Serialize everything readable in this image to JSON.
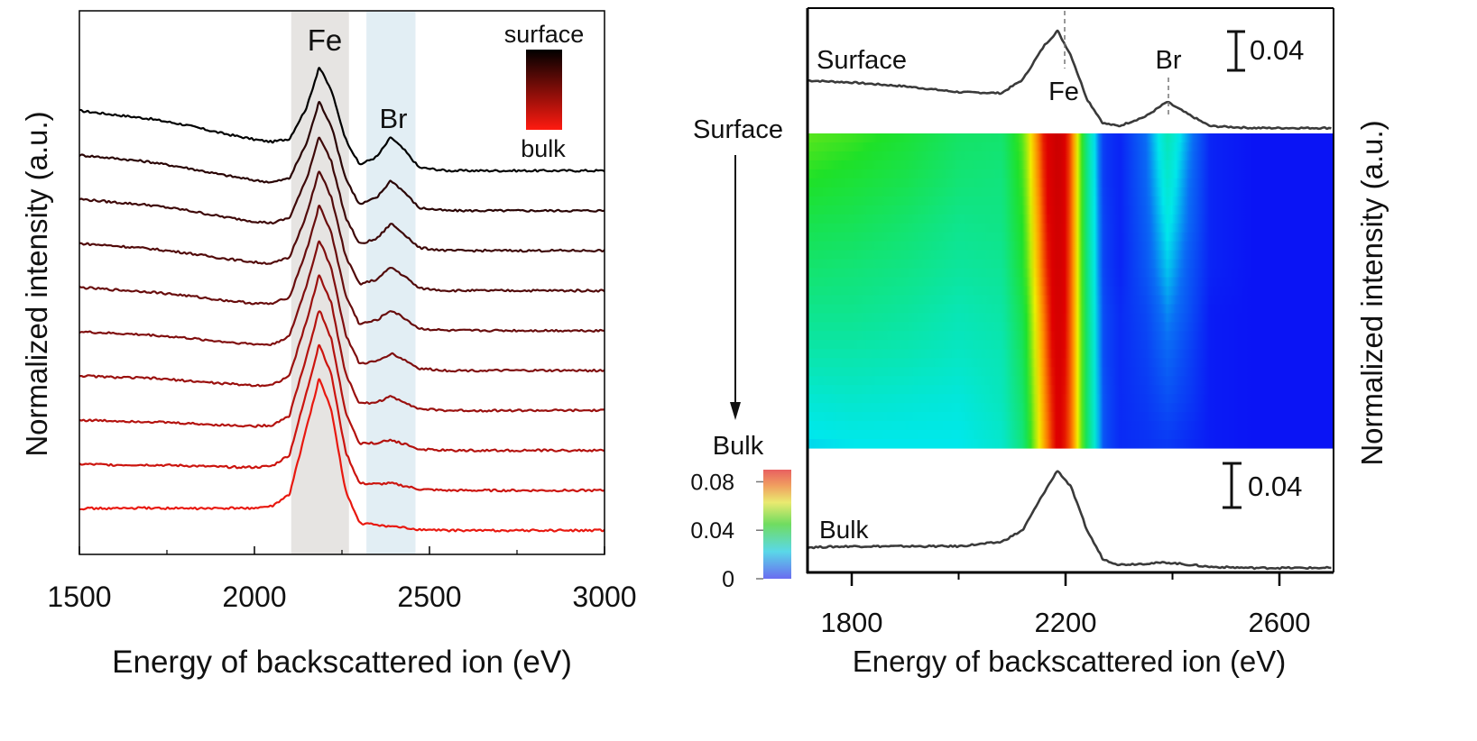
{
  "chart_data": [
    {
      "type": "line",
      "xlabel": "Energy of backscattered ion (eV)",
      "ylabel": "Normalized intensity (a.u.)",
      "xlim": [
        1500,
        3000
      ],
      "ylim": [
        -0.6,
        13.0
      ],
      "xticks": [
        1500,
        2000,
        2500,
        3000
      ],
      "xtick_labels": [
        "1500",
        "2000",
        "2500",
        "3000"
      ],
      "minor_xticks": [
        1750,
        2250,
        2750
      ],
      "bands": [
        {
          "label": "Fe",
          "range": [
            2105,
            2270
          ],
          "color": "#e6e4e2"
        },
        {
          "label": "Br",
          "range": [
            2320,
            2460
          ],
          "color": "#e2eef4"
        }
      ],
      "legend": {
        "top": "surface",
        "bottom": "bulk",
        "colors": [
          "#000000",
          "#ff1a10"
        ]
      },
      "x": [
        1500,
        1600,
        1700,
        1800,
        1900,
        2000,
        2050,
        2100,
        2150,
        2185,
        2220,
        2260,
        2300,
        2350,
        2390,
        2430,
        2470,
        2550,
        2700,
        3000
      ],
      "series": [
        {
          "offset": 9,
          "color": "#000000",
          "values": [
            1.5,
            1.4,
            1.3,
            1.15,
            0.95,
            0.78,
            0.72,
            0.8,
            1.6,
            2.6,
            2.0,
            0.8,
            0.15,
            0.35,
            0.84,
            0.5,
            0.08,
            0,
            0,
            0
          ]
        },
        {
          "offset": 8,
          "color": "#2a0505",
          "values": [
            1.39,
            1.31,
            1.22,
            1.08,
            0.91,
            0.76,
            0.71,
            0.81,
            1.71,
            2.73,
            2.11,
            0.82,
            0.15,
            0.33,
            0.76,
            0.45,
            0.07,
            0,
            0,
            0
          ]
        },
        {
          "offset": 7,
          "color": "#3e0808",
          "values": [
            1.29,
            1.21,
            1.14,
            1.02,
            0.86,
            0.73,
            0.69,
            0.82,
            1.82,
            2.87,
            2.22,
            0.84,
            0.16,
            0.3,
            0.68,
            0.4,
            0.07,
            0,
            0,
            0
          ]
        },
        {
          "offset": 6,
          "color": "#520a0a",
          "values": [
            1.18,
            1.12,
            1.05,
            0.95,
            0.82,
            0.71,
            0.68,
            0.83,
            1.93,
            3.0,
            2.33,
            0.87,
            0.16,
            0.28,
            0.59,
            0.35,
            0.06,
            0,
            0,
            0
          ]
        },
        {
          "offset": 5,
          "color": "#680c0c",
          "values": [
            1.08,
            1.02,
            0.97,
            0.88,
            0.77,
            0.68,
            0.67,
            0.84,
            2.04,
            3.13,
            2.44,
            0.89,
            0.16,
            0.26,
            0.51,
            0.3,
            0.05,
            0,
            0,
            0
          ]
        },
        {
          "offset": 4,
          "color": "#800e0e",
          "values": [
            0.97,
            0.93,
            0.89,
            0.82,
            0.73,
            0.66,
            0.65,
            0.86,
            2.16,
            3.27,
            2.56,
            0.91,
            0.17,
            0.23,
            0.43,
            0.26,
            0.05,
            0,
            0,
            0
          ]
        },
        {
          "offset": 3,
          "color": "#9a100e",
          "values": [
            0.87,
            0.83,
            0.81,
            0.75,
            0.68,
            0.63,
            0.64,
            0.87,
            2.27,
            3.4,
            2.67,
            0.93,
            0.17,
            0.21,
            0.35,
            0.21,
            0.04,
            0,
            0,
            0
          ]
        },
        {
          "offset": 2,
          "color": "#b4120e",
          "values": [
            0.76,
            0.74,
            0.72,
            0.68,
            0.64,
            0.61,
            0.63,
            0.88,
            2.38,
            3.53,
            2.78,
            0.96,
            0.17,
            0.19,
            0.26,
            0.16,
            0.03,
            0,
            0,
            0
          ]
        },
        {
          "offset": 1,
          "color": "#cc140e",
          "values": [
            0.66,
            0.64,
            0.64,
            0.62,
            0.59,
            0.58,
            0.61,
            0.89,
            2.49,
            3.67,
            2.89,
            0.98,
            0.18,
            0.16,
            0.18,
            0.11,
            0.03,
            0,
            0,
            0
          ]
        },
        {
          "offset": 0,
          "color": "#e8180f",
          "values": [
            0.55,
            0.55,
            0.56,
            0.55,
            0.55,
            0.56,
            0.6,
            0.9,
            2.6,
            3.8,
            3.0,
            1.0,
            0.18,
            0.14,
            0.1,
            0.06,
            0.02,
            0,
            0,
            0
          ]
        }
      ],
      "annotations": {
        "fe": "Fe",
        "br": "Br"
      }
    },
    {
      "type": "heatmap",
      "xlabel": "Energy of backscattered ion (eV)",
      "ylabel": "Normalized intensity (a.u.)",
      "xlim": [
        1717,
        2700
      ],
      "xticks": [
        1800,
        2200,
        2600
      ],
      "xtick_labels": [
        "1800",
        "2200",
        "2600"
      ],
      "minor_xticks": [
        2000,
        2400
      ],
      "depth_top": "Surface",
      "depth_bottom": "Bulk",
      "colorbar": {
        "title": "Bulk",
        "range": [
          0,
          0.09
        ],
        "ticks": [
          0,
          0.04,
          0.08
        ],
        "tick_labels": [
          "0",
          "0.04",
          "0.08"
        ]
      },
      "x": [
        1717,
        1800,
        1900,
        2000,
        2080,
        2120,
        2160,
        2185,
        2210,
        2240,
        2270,
        2300,
        2350,
        2390,
        2430,
        2470,
        2550,
        2700
      ],
      "z": [
        [
          0.049,
          0.047,
          0.043,
          0.037,
          0.036,
          0.05,
          0.085,
          0.1,
          0.075,
          0.03,
          0.005,
          0.002,
          0.012,
          0.027,
          0.014,
          0.002,
          0,
          0
        ],
        [
          0.045,
          0.043,
          0.04,
          0.035,
          0.034,
          0.048,
          0.083,
          0.099,
          0.075,
          0.031,
          0.005,
          0.002,
          0.011,
          0.024,
          0.012,
          0.002,
          0,
          0
        ],
        [
          0.04,
          0.039,
          0.036,
          0.032,
          0.033,
          0.046,
          0.081,
          0.097,
          0.075,
          0.031,
          0.006,
          0.002,
          0.01,
          0.021,
          0.011,
          0.002,
          0,
          0
        ],
        [
          0.036,
          0.035,
          0.033,
          0.03,
          0.031,
          0.044,
          0.079,
          0.096,
          0.075,
          0.032,
          0.006,
          0.002,
          0.009,
          0.018,
          0.009,
          0.002,
          0,
          0
        ],
        [
          0.032,
          0.032,
          0.03,
          0.027,
          0.029,
          0.041,
          0.076,
          0.094,
          0.075,
          0.033,
          0.007,
          0.003,
          0.007,
          0.014,
          0.008,
          0.001,
          0,
          0
        ],
        [
          0.028,
          0.028,
          0.027,
          0.025,
          0.027,
          0.039,
          0.074,
          0.093,
          0.075,
          0.034,
          0.007,
          0.003,
          0.006,
          0.011,
          0.006,
          0.001,
          0,
          0
        ],
        [
          0.023,
          0.024,
          0.023,
          0.022,
          0.026,
          0.037,
          0.072,
          0.091,
          0.075,
          0.034,
          0.008,
          0.003,
          0.005,
          0.008,
          0.005,
          0.001,
          0,
          0
        ],
        [
          0.019,
          0.02,
          0.02,
          0.02,
          0.024,
          0.035,
          0.07,
          0.09,
          0.075,
          0.035,
          0.008,
          0.003,
          0.004,
          0.005,
          0.003,
          0.001,
          0,
          0
        ]
      ],
      "spectra": [
        {
          "name": "Surface",
          "values": [
            0.049,
            0.047,
            0.043,
            0.037,
            0.036,
            0.05,
            0.085,
            0.1,
            0.075,
            0.03,
            0.005,
            0.002,
            0.012,
            0.027,
            0.014,
            0.002,
            0,
            0
          ]
        },
        {
          "name": "Bulk",
          "values": [
            0.019,
            0.02,
            0.02,
            0.02,
            0.024,
            0.035,
            0.07,
            0.09,
            0.075,
            0.035,
            0.008,
            0.003,
            0.004,
            0.005,
            0.003,
            0.001,
            0,
            0
          ]
        }
      ],
      "annotations": {
        "fe": "Fe",
        "br": "Br",
        "scale_bar": "0.04",
        "fe_position": 2185,
        "br_position": 2390
      }
    }
  ]
}
